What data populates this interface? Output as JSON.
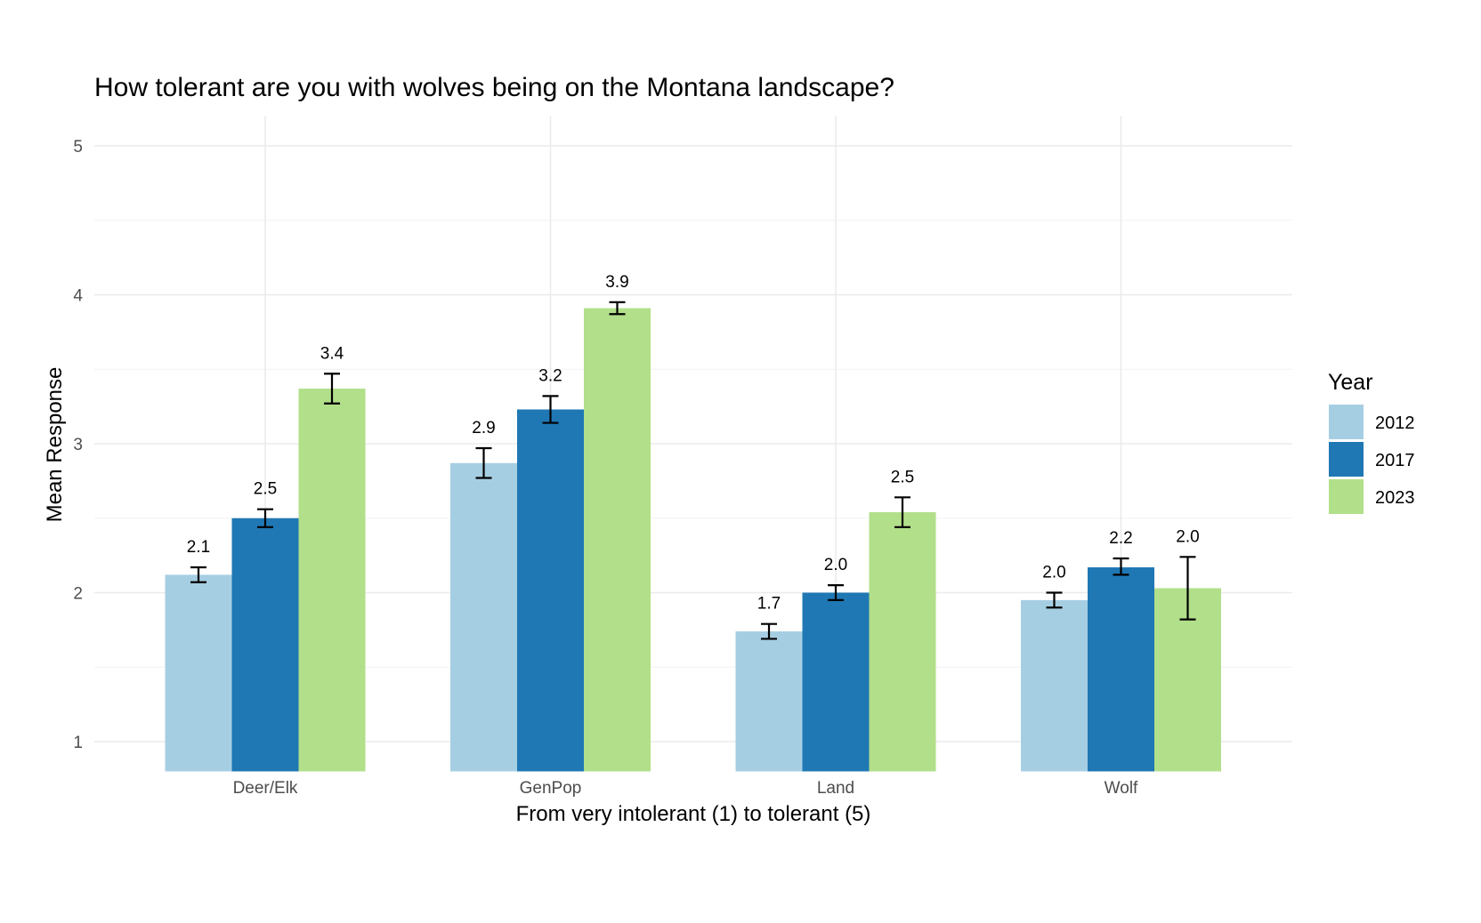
{
  "chart_data": {
    "type": "bar",
    "title": "How tolerant are you with wolves being on the Montana landscape?",
    "xlabel": "From very intolerant (1) to tolerant (5)",
    "ylabel": "Mean Response",
    "categories": [
      "Deer/Elk",
      "GenPop",
      "Land",
      "Wolf"
    ],
    "y_ticks": [
      "1",
      "2",
      "3",
      "4",
      "5"
    ],
    "ylim": [
      0.8,
      5.2
    ],
    "grid": true,
    "legend": {
      "title": "Year",
      "position": "right"
    },
    "series": [
      {
        "name": "2012",
        "color": "#a6cee3",
        "values": [
          2.12,
          2.87,
          1.74,
          1.95
        ],
        "error_low": [
          2.07,
          2.77,
          1.69,
          1.9
        ],
        "error_high": [
          2.17,
          2.97,
          1.79,
          2.0
        ],
        "labels": [
          "2.1",
          "2.9",
          "1.7",
          "2.0"
        ]
      },
      {
        "name": "2017",
        "color": "#1f78b4",
        "values": [
          2.5,
          3.23,
          2.0,
          2.17
        ],
        "error_low": [
          2.44,
          3.14,
          1.95,
          2.12
        ],
        "error_high": [
          2.56,
          3.32,
          2.05,
          2.23
        ],
        "labels": [
          "2.5",
          "3.2",
          "2.0",
          "2.2"
        ]
      },
      {
        "name": "2023",
        "color": "#b2df8a",
        "values": [
          3.37,
          3.91,
          2.54,
          2.03
        ],
        "error_low": [
          3.27,
          3.87,
          2.44,
          1.82
        ],
        "error_high": [
          3.47,
          3.95,
          2.64,
          2.24
        ],
        "labels": [
          "3.4",
          "3.9",
          "2.5",
          "2.0"
        ]
      }
    ]
  }
}
